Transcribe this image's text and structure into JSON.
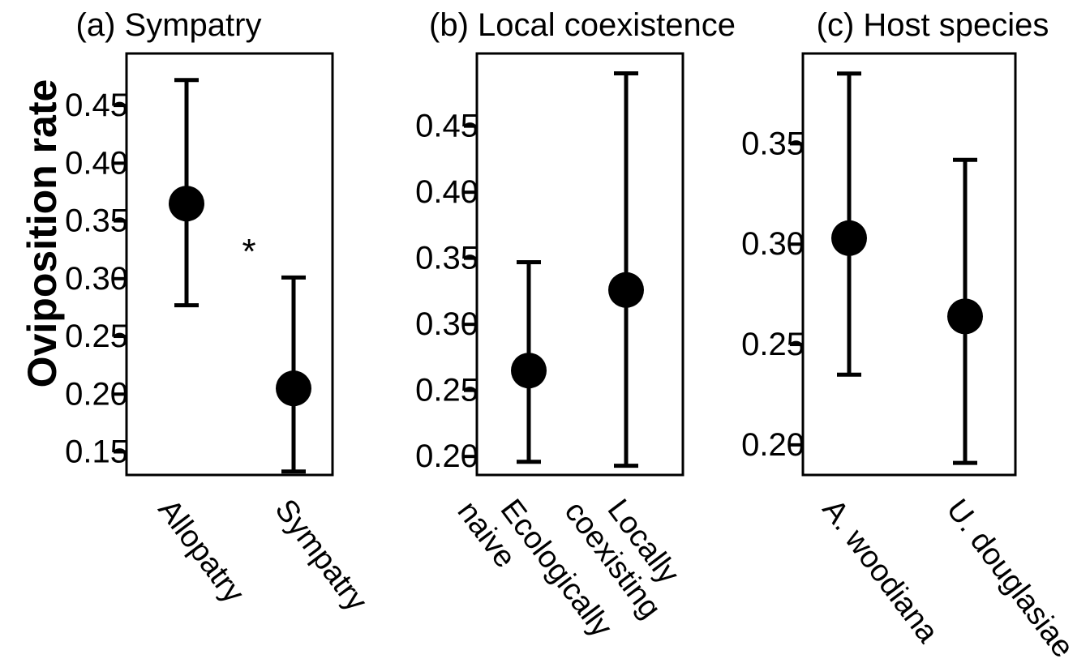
{
  "figure": {
    "ylabel": "Oviposition rate"
  },
  "chart_data": [
    {
      "type": "scatter",
      "title": "(a) Sympatry",
      "categories": [
        "Allopatry",
        "Sympatry"
      ],
      "values": [
        0.365,
        0.205
      ],
      "err_low": [
        0.277,
        0.133
      ],
      "err_high": [
        0.472,
        0.301
      ],
      "ylim": [
        0.13,
        0.495
      ],
      "yticks": [
        "0.15",
        "0.20",
        "0.25",
        "0.30",
        "0.35",
        "0.40",
        "0.45"
      ],
      "annotation": "*",
      "ylabel": "Oviposition rate"
    },
    {
      "type": "scatter",
      "title": "(b) Local coexistence",
      "categories": [
        "Ecologically naive",
        "Locally coexisting"
      ],
      "values": [
        0.265,
        0.326
      ],
      "err_low": [
        0.196,
        0.193
      ],
      "err_high": [
        0.347,
        0.49
      ],
      "ylim": [
        0.186,
        0.505
      ],
      "yticks": [
        "0.20",
        "0.25",
        "0.30",
        "0.35",
        "0.40",
        "0.45"
      ]
    },
    {
      "type": "scatter",
      "title": "(c) Host species",
      "categories": [
        "A. woodiana",
        "U. douglasiae"
      ],
      "values": [
        0.303,
        0.264
      ],
      "err_low": [
        0.235,
        0.191
      ],
      "err_high": [
        0.385,
        0.342
      ],
      "ylim": [
        0.185,
        0.395
      ],
      "yticks": [
        "0.20",
        "0.25",
        "0.30",
        "0.35"
      ]
    }
  ]
}
